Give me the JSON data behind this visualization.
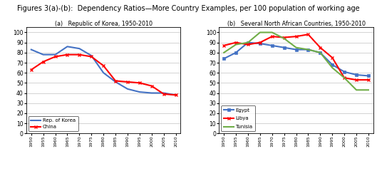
{
  "title": "Figures 3(a)-(b):  Dependency Ratios—More Country Examples, per 100 population of working age",
  "title_fontsize": 7,
  "years": [
    1950,
    1955,
    1960,
    1965,
    1970,
    1975,
    1980,
    1985,
    1990,
    1995,
    2000,
    2005,
    2010
  ],
  "korea": [
    83,
    78,
    78,
    86,
    84,
    77,
    60,
    51,
    44,
    41,
    40,
    40,
    38
  ],
  "china": [
    63,
    71,
    76,
    78,
    78,
    76,
    67,
    52,
    51,
    50,
    47,
    39,
    38
  ],
  "egypt": [
    74,
    80,
    90,
    89,
    87,
    85,
    83,
    83,
    80,
    68,
    61,
    58,
    57
  ],
  "libya": [
    87,
    90,
    88,
    90,
    96,
    95,
    96,
    98,
    85,
    75,
    55,
    53,
    53
  ],
  "tunisia": [
    80,
    88,
    90,
    100,
    100,
    94,
    85,
    83,
    80,
    65,
    55,
    43,
    43
  ],
  "korea_color": "#4472C4",
  "china_color": "#FF0000",
  "egypt_color": "#4472C4",
  "libya_color": "#FF0000",
  "tunisia_color": "#70AD47",
  "subplot_a_title": "(a)   Republic of Korea, 1950-2010",
  "subplot_b_title": "(b)   Several North African Countries, 1950-2010",
  "korea_label": "Rep. of Korea",
  "china_label": "China",
  "egypt_label": "Egypt",
  "libya_label": "Libya",
  "tunisia_label": "Tunisia",
  "ylim": [
    0,
    105
  ],
  "yticks": [
    0,
    10,
    20,
    30,
    40,
    50,
    60,
    70,
    80,
    90,
    100
  ],
  "background_color": "#FFFFFF",
  "grid_color": "#BBBBBB"
}
